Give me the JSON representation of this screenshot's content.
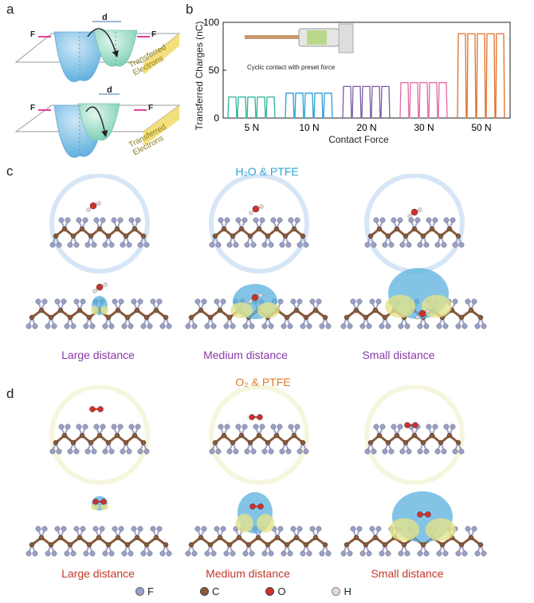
{
  "panels": {
    "a": {
      "label": "a",
      "distance_label": "d",
      "force_label": "F",
      "transferred_line1": "Transferred",
      "transferred_line2": "Electrons"
    },
    "b": {
      "label": "b",
      "inset_caption": "Cyclic contact with preset force"
    },
    "c": {
      "label": "c",
      "title": "H₂O & PTFE",
      "distances": [
        "Large distance",
        "Medium distance",
        "Small distance"
      ]
    },
    "d": {
      "label": "d",
      "title": "O₂ & PTFE",
      "distances": [
        "Large distance",
        "Medium distance",
        "Small distance"
      ]
    }
  },
  "legend": [
    {
      "symbol": "F",
      "color": "#9aa0cc"
    },
    {
      "symbol": "C",
      "color": "#8a5a3a"
    },
    {
      "symbol": "O",
      "color": "#d0312d"
    },
    {
      "symbol": "H",
      "color": "#e8d6d6"
    }
  ],
  "colors": {
    "F": "#9aa0cc",
    "C": "#8a5a3a",
    "O": "#d0312d",
    "H": "#e8d6d6"
  },
  "chart_data": {
    "type": "line",
    "xlabel": "Contact Force",
    "ylabel": "Transferred Charges (nC)",
    "ylim": [
      0,
      100
    ],
    "yticks": [
      0,
      50,
      100
    ],
    "categories": [
      "5 N",
      "10 N",
      "20 N",
      "30 N",
      "50 N"
    ],
    "series": [
      {
        "category": "5 N",
        "value": 22,
        "color": "#2ab39a"
      },
      {
        "category": "10 N",
        "value": 26,
        "color": "#2a9fd6"
      },
      {
        "category": "20 N",
        "value": 33,
        "color": "#7b5aa6"
      },
      {
        "category": "30 N",
        "value": 37,
        "color": "#e466a6"
      },
      {
        "category": "50 N",
        "value": 88,
        "color": "#e0702a"
      }
    ]
  }
}
